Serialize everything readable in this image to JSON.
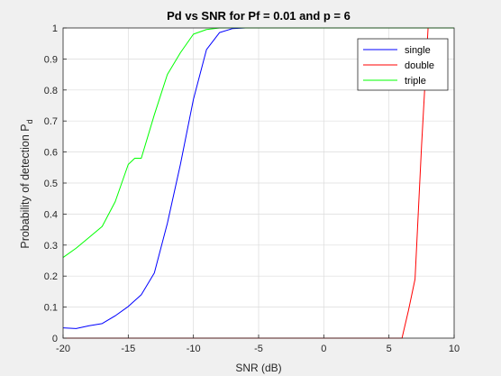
{
  "chart_data": {
    "type": "line",
    "title": "Pd vs SNR for Pf = 0.01 and p = 6",
    "xlabel": "SNR (dB)",
    "ylabel": "Probability of detection P",
    "ylabel_subscript": "d",
    "xlim": [
      -20,
      10
    ],
    "ylim": [
      0,
      1
    ],
    "xticks": [
      -20,
      -15,
      -10,
      -5,
      0,
      5,
      10
    ],
    "yticks": [
      0,
      0.1,
      0.2,
      0.3,
      0.4,
      0.5,
      0.6,
      0.7,
      0.8,
      0.9,
      1
    ],
    "grid": true,
    "legend_position": "top-right",
    "series": [
      {
        "name": "single",
        "color": "#0000ff",
        "x": [
          -20,
          -19,
          -18,
          -17,
          -16,
          -15,
          -14,
          -13,
          -12,
          -11,
          -10,
          -9,
          -8,
          -7,
          -6,
          -5,
          -4,
          -3,
          -2,
          -1,
          0,
          1,
          2,
          3,
          4,
          5,
          6,
          7,
          8,
          9,
          10
        ],
        "y": [
          0.033,
          0.031,
          0.04,
          0.047,
          0.072,
          0.102,
          0.14,
          0.21,
          0.37,
          0.56,
          0.77,
          0.93,
          0.985,
          0.998,
          1,
          1,
          1,
          1,
          1,
          1,
          1,
          1,
          1,
          1,
          1,
          1,
          1,
          1,
          1,
          1,
          1
        ]
      },
      {
        "name": "double",
        "color": "#ff0000",
        "x": [
          -20,
          -19,
          -18,
          -17,
          -16,
          -15,
          -14,
          -13,
          -12,
          -11,
          -10,
          -9,
          -8,
          -7,
          -6,
          -5,
          -4,
          -3,
          -2,
          -1,
          0,
          1,
          2,
          3,
          4,
          5,
          6,
          6.5,
          7,
          7.5,
          8,
          9,
          10
        ],
        "y": [
          0,
          0,
          0,
          0,
          0,
          0,
          0,
          0,
          0,
          0,
          0,
          0,
          0,
          0,
          0,
          0,
          0,
          0,
          0,
          0,
          0,
          0,
          0,
          0,
          0,
          0,
          0,
          0.09,
          0.19,
          0.62,
          1,
          1,
          1
        ]
      },
      {
        "name": "triple",
        "color": "#00ff00",
        "x": [
          -20,
          -19,
          -18,
          -17,
          -16,
          -15,
          -14.5,
          -14,
          -13,
          -12,
          -11,
          -10,
          -9,
          -8,
          -7,
          -6,
          -5,
          -4,
          -3,
          -2,
          -1,
          0,
          1,
          2,
          3,
          4,
          5,
          6,
          7,
          8,
          9,
          10
        ],
        "y": [
          0.26,
          0.29,
          0.325,
          0.36,
          0.44,
          0.56,
          0.58,
          0.58,
          0.72,
          0.85,
          0.92,
          0.98,
          0.995,
          1,
          1,
          1,
          1,
          1,
          1,
          1,
          1,
          1,
          1,
          1,
          1,
          1,
          1,
          1,
          1,
          1,
          1,
          1
        ]
      }
    ]
  }
}
